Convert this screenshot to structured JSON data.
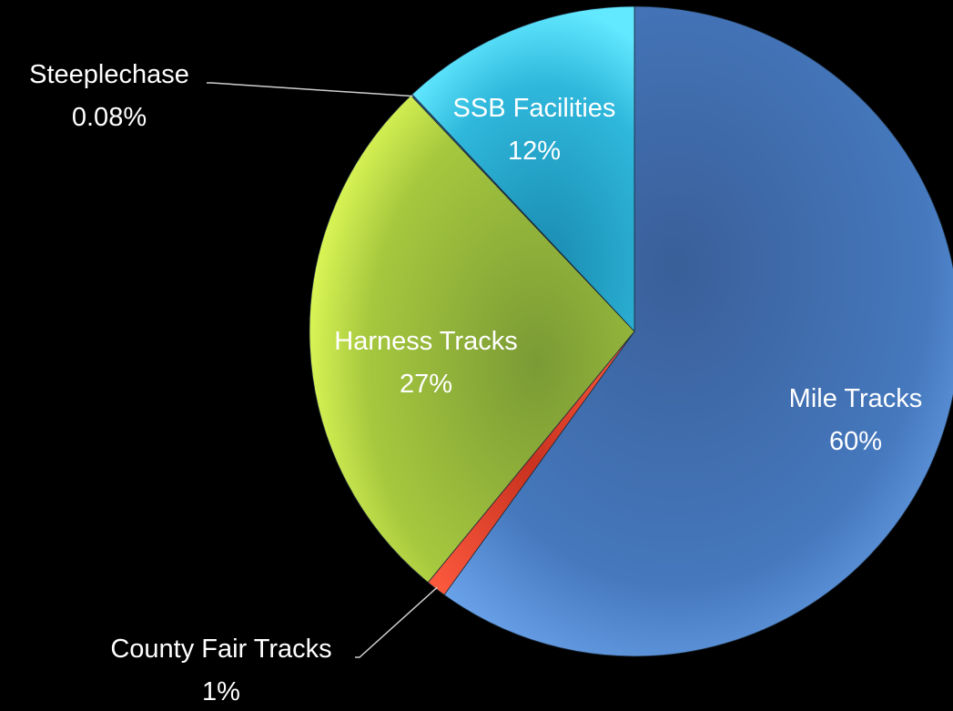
{
  "chart_data": {
    "type": "pie",
    "title": "",
    "slices": [
      {
        "label": "Mile Tracks",
        "value_label": "60%",
        "value": 60,
        "color": "#3e6fae"
      },
      {
        "label": "County Fair Tracks",
        "value_label": "1%",
        "value": 1,
        "color": "#e0402e"
      },
      {
        "label": "Harness Tracks",
        "value_label": "27%",
        "value": 27,
        "color": "#9cbf3c"
      },
      {
        "label": "Steeplechase",
        "value_label": "0.08%",
        "value": 0.08,
        "color": "#2d5f8e"
      },
      {
        "label": "SSB Facilities",
        "value_label": "12%",
        "value": 12,
        "color": "#2fb6d8"
      }
    ],
    "start_angle_deg": 0,
    "direction": "clockwise",
    "legend": "none"
  }
}
